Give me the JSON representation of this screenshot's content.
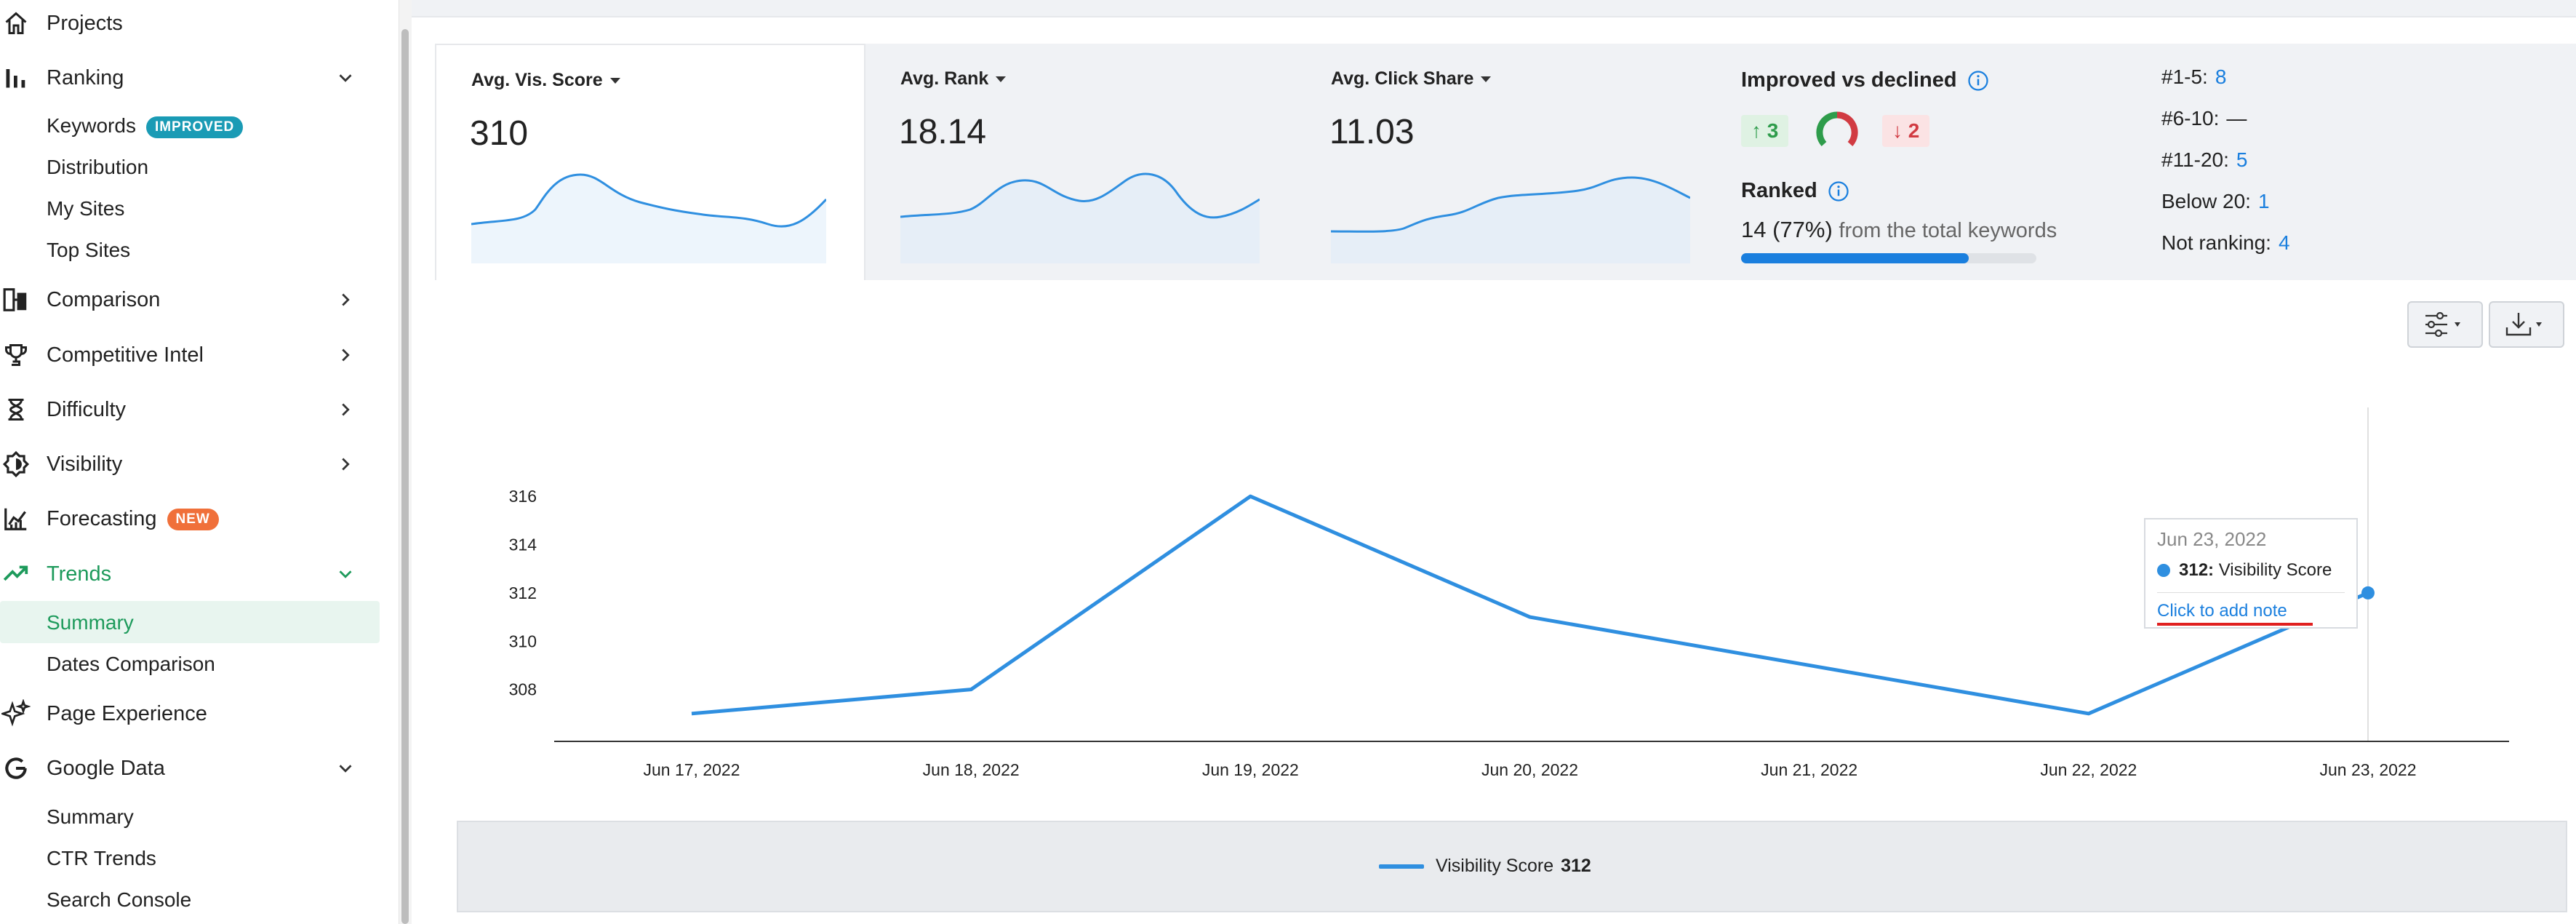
{
  "sidebar": {
    "items": [
      {
        "label": "Projects"
      },
      {
        "label": "Ranking"
      },
      {
        "label": "Comparison"
      },
      {
        "label": "Competitive Intel"
      },
      {
        "label": "Difficulty"
      },
      {
        "label": "Visibility"
      },
      {
        "label": "Forecasting",
        "badge": "NEW"
      },
      {
        "label": "Trends"
      },
      {
        "label": "Page Experience"
      },
      {
        "label": "Google Data"
      }
    ],
    "ranking_sub": [
      {
        "label": "Keywords",
        "badge": "IMPROVED"
      },
      {
        "label": "Distribution"
      },
      {
        "label": "My Sites"
      },
      {
        "label": "Top Sites"
      }
    ],
    "trends_sub": [
      {
        "label": "Summary"
      },
      {
        "label": "Dates Comparison"
      }
    ],
    "google_sub": [
      {
        "label": "Summary"
      },
      {
        "label": "CTR Trends"
      },
      {
        "label": "Search Console"
      }
    ],
    "active_item": "Trends",
    "active_sub": "Summary"
  },
  "stats": {
    "cards": [
      {
        "title": "Avg. Vis. Score",
        "value": "310"
      },
      {
        "title": "Avg. Rank",
        "value": "18.14"
      },
      {
        "title": "Avg. Click Share",
        "value": "11.03"
      }
    ],
    "improved": {
      "title": "Improved vs declined",
      "up": "3",
      "down": "2"
    },
    "ranked": {
      "title": "Ranked",
      "count": "14 (77%)",
      "suffix": "from the total keywords",
      "progress": 0.77
    },
    "distribution": [
      {
        "label": "#1-5:",
        "value": "8"
      },
      {
        "label": "#6-10:",
        "value": "—"
      },
      {
        "label": "#11-20:",
        "value": "5"
      },
      {
        "label": "Below 20:",
        "value": "1"
      },
      {
        "label": "Not ranking:",
        "value": "4"
      }
    ]
  },
  "chart_data": {
    "type": "line",
    "x": [
      "Jun 17, 2022",
      "Jun 18, 2022",
      "Jun 19, 2022",
      "Jun 20, 2022",
      "Jun 21, 2022",
      "Jun 22, 2022",
      "Jun 23, 2022"
    ],
    "series": [
      {
        "name": "Visibility Score",
        "values": [
          307,
          308,
          316,
          311,
          309,
          307,
          312
        ]
      }
    ],
    "yticks": [
      308,
      310,
      312,
      314,
      316
    ],
    "ylim": [
      306,
      317
    ],
    "grid": false,
    "legend": "bottom",
    "color": "#2f8fe0"
  },
  "legend": {
    "label": "Visibility Score",
    "value": "312"
  },
  "tooltip": {
    "date": "Jun 23, 2022",
    "value": "312:",
    "series": "Visibility Score",
    "link": "Click to add note"
  }
}
